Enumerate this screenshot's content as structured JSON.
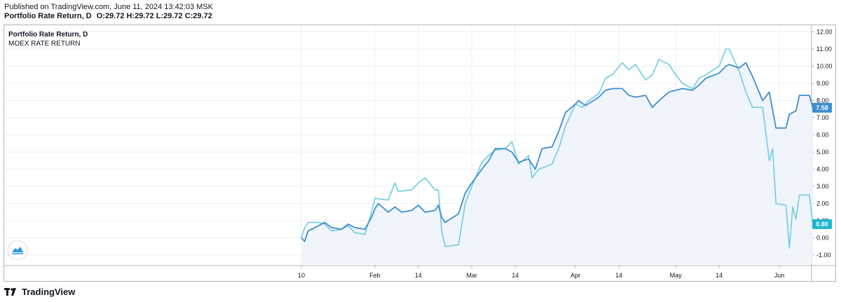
{
  "header": {
    "published": "Published on TradingView.com, June 11, 2024 13:42:03 MSK",
    "title": "Portfolio Rate Return, D",
    "ohlc": "O:29.72 H:29.72 L:29.72 C:29.72"
  },
  "legend": {
    "main": "Portfolio Rate Return, D",
    "compare": "MOEX RATE RETURN"
  },
  "footer": {
    "brand": "TradingView"
  },
  "colors": {
    "portfolio": "#3d8fcf",
    "moex": "#6fcde0",
    "area_fill": "#eef3fb",
    "grid": "#eceff4",
    "axis_text": "#131722"
  },
  "chart_data": {
    "type": "line",
    "title": "Portfolio Rate Return, D",
    "xlabel": "",
    "ylabel": "",
    "ylim": [
      -1.5,
      12.3
    ],
    "y_ticks": [
      12.0,
      11.0,
      10.0,
      9.0,
      8.0,
      7.0,
      6.0,
      5.0,
      4.0,
      3.0,
      2.0,
      1.0,
      0.0,
      -1.0
    ],
    "x_tick_labels": [
      {
        "date": "2024-01-10",
        "label": "10"
      },
      {
        "date": "2024-02-01",
        "label": "Feb"
      },
      {
        "date": "2024-02-14",
        "label": "14"
      },
      {
        "date": "2024-03-01",
        "label": "Mar"
      },
      {
        "date": "2024-03-14",
        "label": "14"
      },
      {
        "date": "2024-04-01",
        "label": "Apr"
      },
      {
        "date": "2024-04-14",
        "label": "14"
      },
      {
        "date": "2024-05-01",
        "label": "May"
      },
      {
        "date": "2024-05-14",
        "label": "14"
      },
      {
        "date": "2024-06-01",
        "label": "Jun"
      }
    ],
    "xlim": [
      "2024-01-10",
      "2024-06-11"
    ],
    "series": [
      {
        "name": "Portfolio Rate Return",
        "last_value": "7.58",
        "points": [
          [
            "2024-01-10",
            0.0
          ],
          [
            "2024-01-11",
            -0.2
          ],
          [
            "2024-01-12",
            0.4
          ],
          [
            "2024-01-15",
            0.7
          ],
          [
            "2024-01-17",
            0.9
          ],
          [
            "2024-01-19",
            0.6
          ],
          [
            "2024-01-22",
            0.5
          ],
          [
            "2024-01-24",
            0.8
          ],
          [
            "2024-01-26",
            0.6
          ],
          [
            "2024-01-29",
            0.5
          ],
          [
            "2024-01-31",
            1.2
          ],
          [
            "2024-02-01",
            1.7
          ],
          [
            "2024-02-02",
            2.0
          ],
          [
            "2024-02-05",
            1.5
          ],
          [
            "2024-02-07",
            1.8
          ],
          [
            "2024-02-09",
            1.5
          ],
          [
            "2024-02-12",
            1.6
          ],
          [
            "2024-02-14",
            1.9
          ],
          [
            "2024-02-16",
            1.5
          ],
          [
            "2024-02-19",
            1.6
          ],
          [
            "2024-02-20",
            1.9
          ],
          [
            "2024-02-21",
            1.2
          ],
          [
            "2024-02-22",
            0.9
          ],
          [
            "2024-02-26",
            1.4
          ],
          [
            "2024-02-28",
            2.6
          ],
          [
            "2024-03-01",
            3.2
          ],
          [
            "2024-03-04",
            4.0
          ],
          [
            "2024-03-06",
            4.5
          ],
          [
            "2024-03-08",
            5.2
          ],
          [
            "2024-03-11",
            5.2
          ],
          [
            "2024-03-13",
            5.0
          ],
          [
            "2024-03-15",
            4.4
          ],
          [
            "2024-03-18",
            4.6
          ],
          [
            "2024-03-20",
            4.0
          ],
          [
            "2024-03-22",
            5.2
          ],
          [
            "2024-03-25",
            5.3
          ],
          [
            "2024-03-27",
            6.2
          ],
          [
            "2024-03-29",
            7.3
          ],
          [
            "2024-04-01",
            7.8
          ],
          [
            "2024-04-02",
            8.0
          ],
          [
            "2024-04-04",
            7.7
          ],
          [
            "2024-04-08",
            8.2
          ],
          [
            "2024-04-10",
            8.6
          ],
          [
            "2024-04-12",
            8.7
          ],
          [
            "2024-04-15",
            8.7
          ],
          [
            "2024-04-17",
            8.3
          ],
          [
            "2024-04-19",
            8.2
          ],
          [
            "2024-04-22",
            8.3
          ],
          [
            "2024-04-24",
            7.6
          ],
          [
            "2024-04-26",
            8.0
          ],
          [
            "2024-04-29",
            8.5
          ],
          [
            "2024-05-01",
            8.6
          ],
          [
            "2024-05-03",
            8.7
          ],
          [
            "2024-05-06",
            8.6
          ],
          [
            "2024-05-08",
            8.9
          ],
          [
            "2024-05-10",
            9.3
          ],
          [
            "2024-05-14",
            9.6
          ],
          [
            "2024-05-16",
            10.0
          ],
          [
            "2024-05-17",
            10.1
          ],
          [
            "2024-05-20",
            9.9
          ],
          [
            "2024-05-22",
            10.2
          ],
          [
            "2024-05-24",
            9.4
          ],
          [
            "2024-05-27",
            8.0
          ],
          [
            "2024-05-29",
            8.5
          ],
          [
            "2024-05-31",
            6.4
          ],
          [
            "2024-06-03",
            6.4
          ],
          [
            "2024-06-04",
            7.2
          ],
          [
            "2024-06-06",
            7.4
          ],
          [
            "2024-06-07",
            8.3
          ],
          [
            "2024-06-10",
            8.3
          ],
          [
            "2024-06-11",
            7.58
          ]
        ]
      },
      {
        "name": "MOEX RATE RETURN",
        "last_value": "0.80",
        "points": [
          [
            "2024-01-10",
            0.0
          ],
          [
            "2024-01-11",
            0.6
          ],
          [
            "2024-01-12",
            0.9
          ],
          [
            "2024-01-15",
            0.9
          ],
          [
            "2024-01-17",
            0.8
          ],
          [
            "2024-01-19",
            0.4
          ],
          [
            "2024-01-22",
            0.5
          ],
          [
            "2024-01-24",
            0.7
          ],
          [
            "2024-01-26",
            0.3
          ],
          [
            "2024-01-29",
            0.2
          ],
          [
            "2024-01-31",
            1.5
          ],
          [
            "2024-02-01",
            2.3
          ],
          [
            "2024-02-05",
            2.2
          ],
          [
            "2024-02-07",
            3.2
          ],
          [
            "2024-02-08",
            2.7
          ],
          [
            "2024-02-12",
            2.8
          ],
          [
            "2024-02-14",
            3.2
          ],
          [
            "2024-02-16",
            3.5
          ],
          [
            "2024-02-19",
            2.8
          ],
          [
            "2024-02-20",
            2.8
          ],
          [
            "2024-02-21",
            0.4
          ],
          [
            "2024-02-22",
            -0.5
          ],
          [
            "2024-02-26",
            -0.4
          ],
          [
            "2024-02-28",
            2.0
          ],
          [
            "2024-03-01",
            3.0
          ],
          [
            "2024-03-04",
            4.4
          ],
          [
            "2024-03-06",
            4.8
          ],
          [
            "2024-03-08",
            5.1
          ],
          [
            "2024-03-11",
            5.2
          ],
          [
            "2024-03-13",
            5.6
          ],
          [
            "2024-03-15",
            4.3
          ],
          [
            "2024-03-18",
            4.8
          ],
          [
            "2024-03-19",
            3.5
          ],
          [
            "2024-03-21",
            4.0
          ],
          [
            "2024-03-25",
            4.3
          ],
          [
            "2024-03-27",
            5.2
          ],
          [
            "2024-03-29",
            6.5
          ],
          [
            "2024-04-01",
            7.8
          ],
          [
            "2024-04-03",
            7.6
          ],
          [
            "2024-04-05",
            8.0
          ],
          [
            "2024-04-08",
            8.4
          ],
          [
            "2024-04-10",
            9.3
          ],
          [
            "2024-04-12",
            9.5
          ],
          [
            "2024-04-15",
            10.2
          ],
          [
            "2024-04-17",
            9.8
          ],
          [
            "2024-04-19",
            10.1
          ],
          [
            "2024-04-22",
            9.2
          ],
          [
            "2024-04-24",
            9.5
          ],
          [
            "2024-04-26",
            10.4
          ],
          [
            "2024-04-29",
            10.1
          ],
          [
            "2024-05-01",
            9.5
          ],
          [
            "2024-05-03",
            9.0
          ],
          [
            "2024-05-06",
            8.7
          ],
          [
            "2024-05-08",
            9.3
          ],
          [
            "2024-05-10",
            9.5
          ],
          [
            "2024-05-14",
            10.0
          ],
          [
            "2024-05-15",
            10.5
          ],
          [
            "2024-05-16",
            11.0
          ],
          [
            "2024-05-17",
            11.0
          ],
          [
            "2024-05-20",
            9.7
          ],
          [
            "2024-05-22",
            8.5
          ],
          [
            "2024-05-24",
            7.6
          ],
          [
            "2024-05-27",
            7.6
          ],
          [
            "2024-05-29",
            4.5
          ],
          [
            "2024-05-30",
            5.2
          ],
          [
            "2024-05-31",
            2.0
          ],
          [
            "2024-06-03",
            1.9
          ],
          [
            "2024-06-04",
            -0.6
          ],
          [
            "2024-06-05",
            1.8
          ],
          [
            "2024-06-06",
            1.1
          ],
          [
            "2024-06-07",
            2.5
          ],
          [
            "2024-06-10",
            2.5
          ],
          [
            "2024-06-11",
            0.8
          ]
        ]
      }
    ]
  }
}
